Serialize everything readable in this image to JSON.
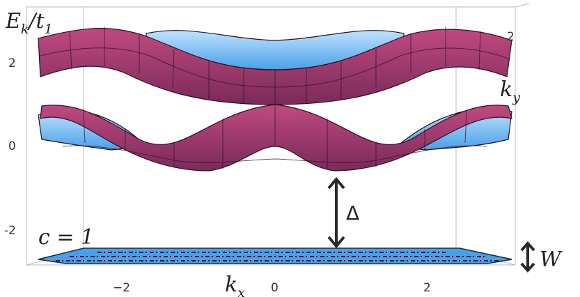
{
  "axes": {
    "z_label": {
      "main": "E",
      "sub": "k",
      "mid": "/t",
      "sub2": "1"
    },
    "x_label": {
      "main": "k",
      "sub": "x"
    },
    "y_label": {
      "main": "k",
      "sub": "y"
    },
    "z_ticks": [
      "2",
      "0",
      "-2"
    ],
    "x_ticks": [
      "−2",
      "0",
      "2"
    ],
    "y_ticks": [
      "2"
    ]
  },
  "annotations": {
    "chern": "c = 1",
    "gap": "Δ",
    "width": "W"
  }
}
